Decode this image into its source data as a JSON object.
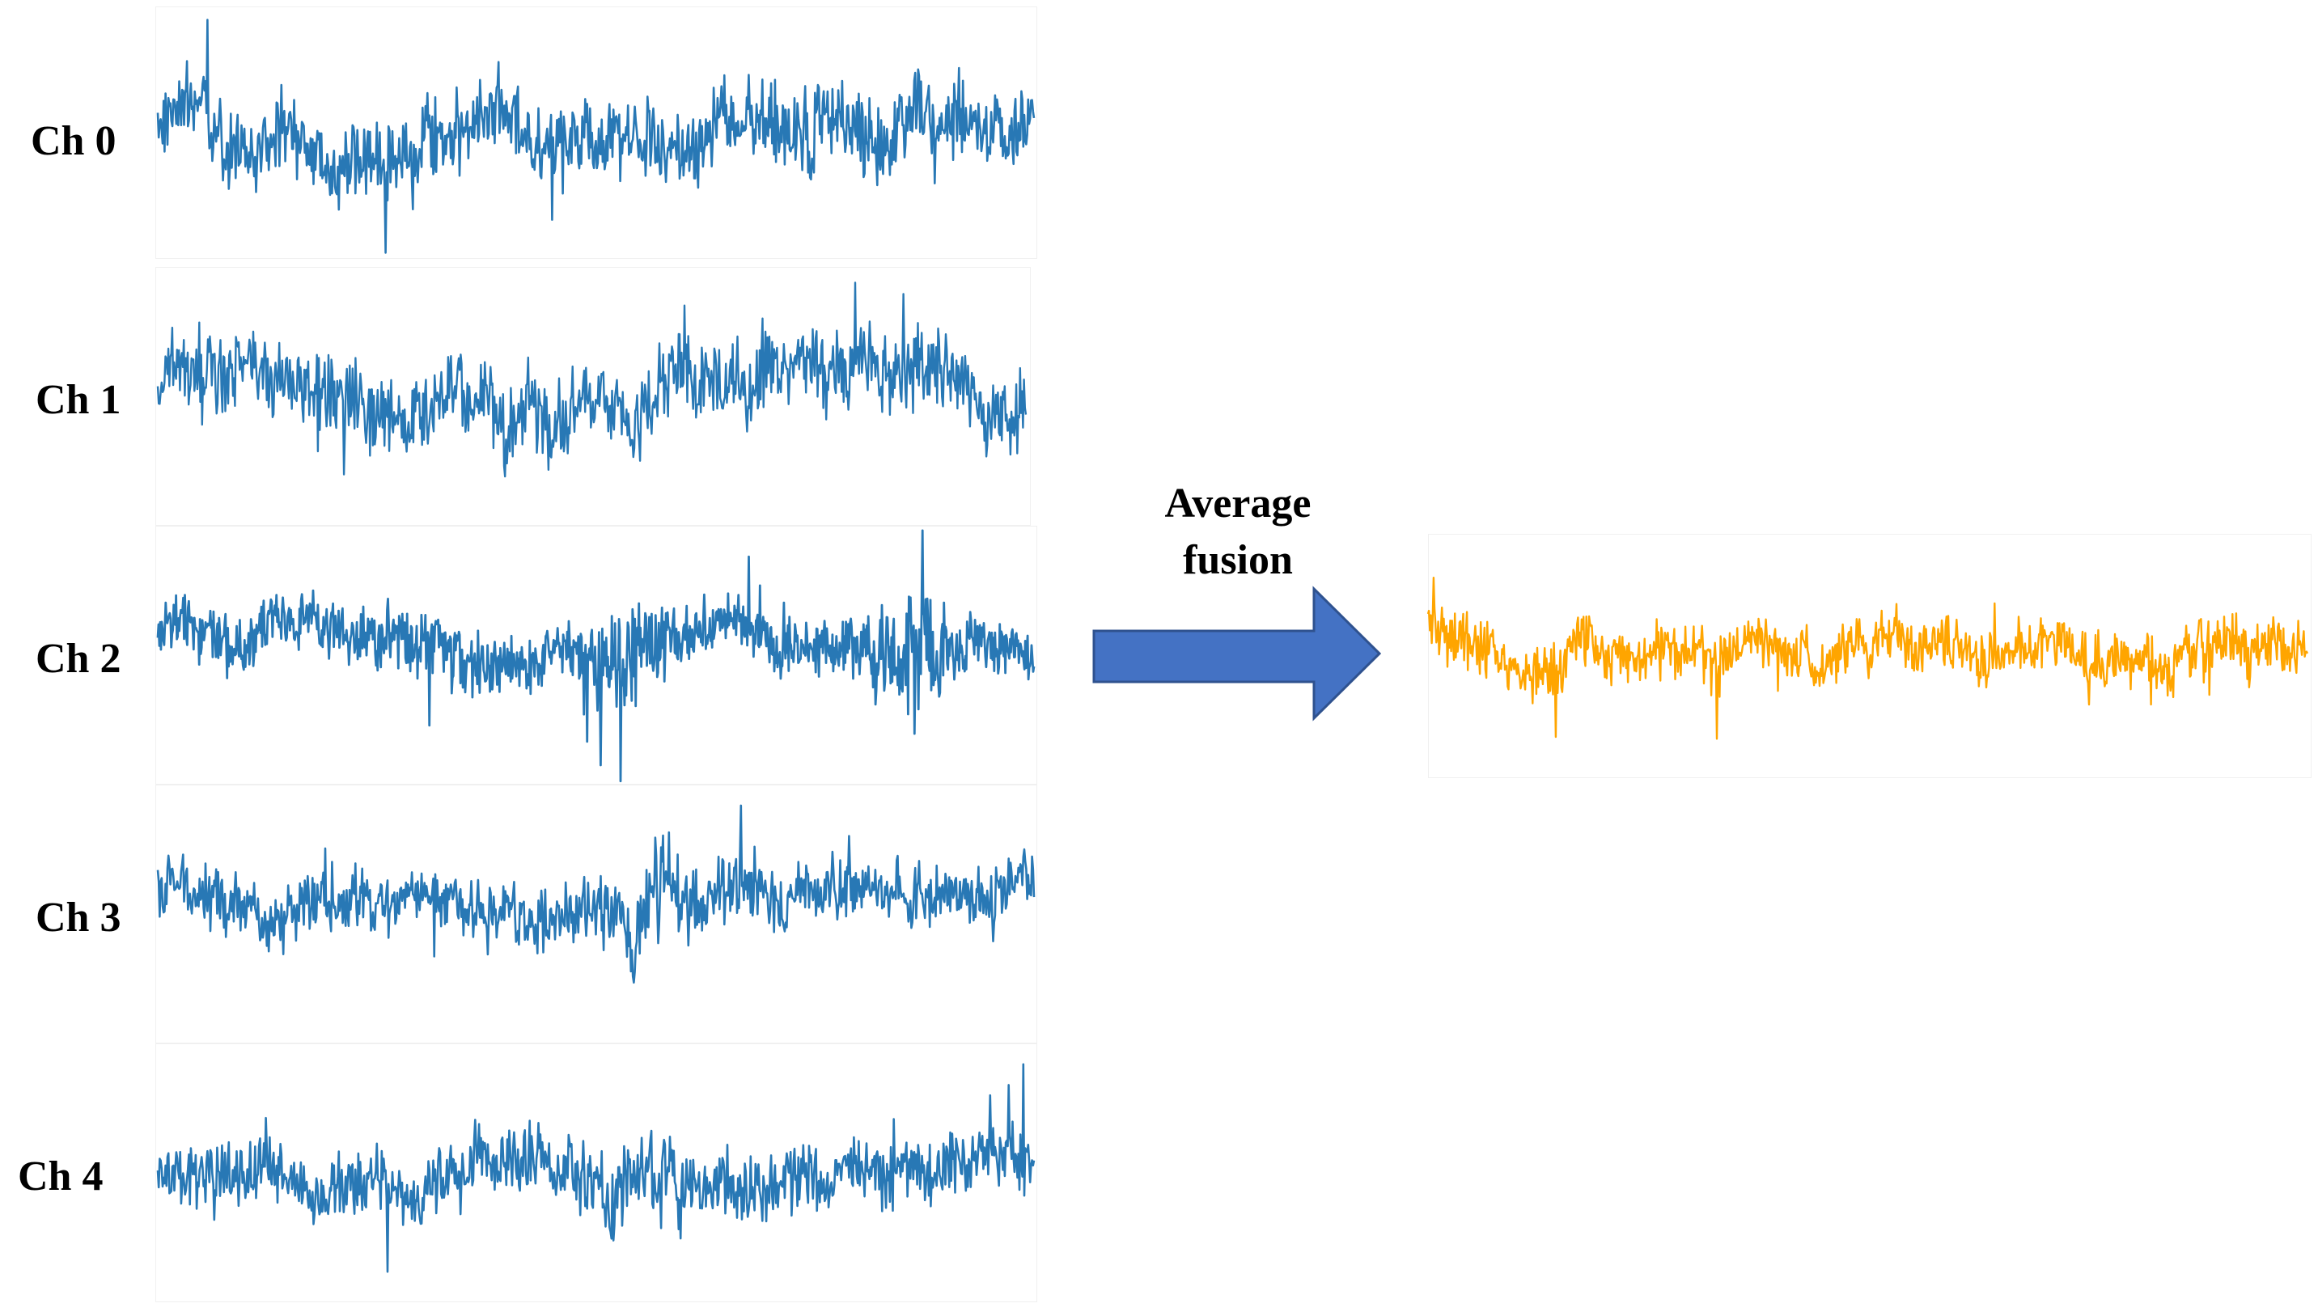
{
  "channels": [
    {
      "label": "Ch 0"
    },
    {
      "label": "Ch 1"
    },
    {
      "label": "Ch 2"
    },
    {
      "label": "Ch 3"
    },
    {
      "label": "Ch 4"
    }
  ],
  "arrow": {
    "caption_line1": "Average",
    "caption_line2": "fusion"
  },
  "colors": {
    "signal": "#2878b5",
    "fused": "#ffa500",
    "arrow_fill": "#4472c4",
    "arrow_stroke": "#2f528f"
  }
}
